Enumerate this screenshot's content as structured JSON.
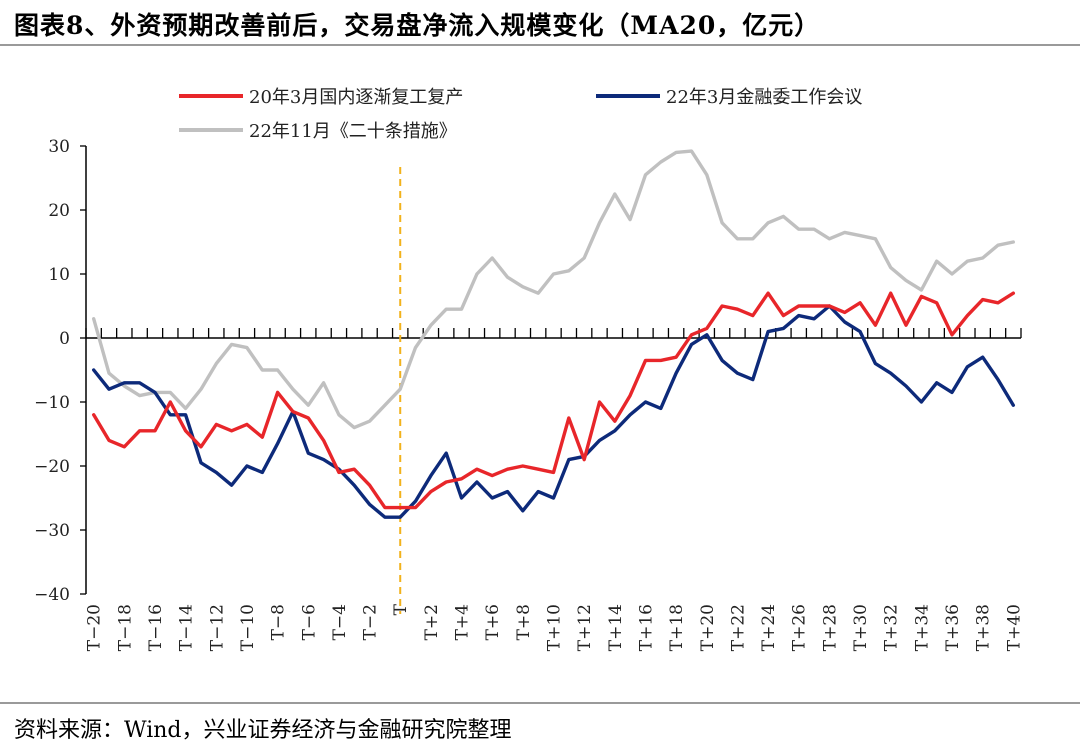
{
  "title": "图表8、外资预期改善前后，交易盘净流入规模变化（MA20，亿元）",
  "source": "资料来源：Wind，兴业证券经济与金融研究院整理",
  "chart_data": {
    "type": "line",
    "title": "图表8、外资预期改善前后，交易盘净流入规模变化（MA20，亿元）",
    "xlabel": "",
    "ylabel": "",
    "ylim": [
      -40,
      30
    ],
    "yticks": [
      -40,
      -30,
      -20,
      -10,
      0,
      10,
      20,
      30
    ],
    "grid": false,
    "legend_position": "top",
    "event_marker": "T",
    "x": [
      "T-20",
      "T-19",
      "T-18",
      "T-17",
      "T-16",
      "T-15",
      "T-14",
      "T-13",
      "T-12",
      "T-11",
      "T-10",
      "T-9",
      "T-8",
      "T-7",
      "T-6",
      "T-5",
      "T-4",
      "T-3",
      "T-2",
      "T-1",
      "T",
      "T+1",
      "T+2",
      "T+3",
      "T+4",
      "T+5",
      "T+6",
      "T+7",
      "T+8",
      "T+9",
      "T+10",
      "T+11",
      "T+12",
      "T+13",
      "T+14",
      "T+15",
      "T+16",
      "T+17",
      "T+18",
      "T+19",
      "T+20",
      "T+21",
      "T+22",
      "T+23",
      "T+24",
      "T+25",
      "T+26",
      "T+27",
      "T+28",
      "T+29",
      "T+30",
      "T+31",
      "T+32",
      "T+33",
      "T+34",
      "T+35",
      "T+36",
      "T+37",
      "T+38",
      "T+39",
      "T+40"
    ],
    "xtick_labels": [
      "T−20",
      "T−18",
      "T−16",
      "T−14",
      "T−12",
      "T−10",
      "T−8",
      "T−6",
      "T−4",
      "T−2",
      "T",
      "T+2",
      "T+4",
      "T+6",
      "T+8",
      "T+10",
      "T+12",
      "T+14",
      "T+16",
      "T+18",
      "T+20",
      "T+22",
      "T+24",
      "T+26",
      "T+28",
      "T+30",
      "T+32",
      "T+34",
      "T+36",
      "T+38",
      "T+40"
    ],
    "series": [
      {
        "name": "20年3月国内逐渐复工复产",
        "color": "#e8262a",
        "values": [
          -12,
          -16,
          -17,
          -14.5,
          -14.5,
          -10,
          -14.5,
          -17,
          -13.5,
          -14.5,
          -13.5,
          -15.5,
          -8.5,
          -11.5,
          -12.5,
          -16,
          -21,
          -20.5,
          -23,
          -26.5,
          -26.5,
          -26.5,
          -24,
          -22.5,
          -22,
          -20.5,
          -21.5,
          -20.5,
          -20,
          -20.5,
          -21,
          -12.5,
          -19,
          -10,
          -13,
          -9,
          -3.5,
          -3.5,
          -3,
          0.5,
          1.5,
          5,
          4.5,
          3.5,
          7,
          3.5,
          5,
          5,
          5,
          4,
          5.5,
          2,
          7,
          2,
          6.5,
          5.5,
          0.5,
          3.5,
          6,
          5.5,
          7
        ]
      },
      {
        "name": "22年3月金融委工作会议",
        "color": "#0d2a7a",
        "values": [
          -5,
          -8,
          -7,
          -7,
          -8.5,
          -12,
          -12,
          -19.5,
          -21,
          -23,
          -20,
          -21,
          -16.5,
          -11.5,
          -18,
          -19,
          -20.5,
          -23,
          -26,
          -28,
          -28,
          -25.5,
          -21.5,
          -18,
          -25,
          -22.5,
          -25,
          -24,
          -27,
          -24,
          -25,
          -19,
          -18.5,
          -16,
          -14.5,
          -12,
          -10,
          -11,
          -5.5,
          -1,
          0.5,
          -3.5,
          -5.5,
          -6.5,
          1,
          1.5,
          3.5,
          3,
          5,
          2.5,
          1,
          -4,
          -5.5,
          -7.5,
          -10,
          -7,
          -8.5,
          -4.5,
          -3,
          -6.5,
          -10.5
        ]
      },
      {
        "name": "22年11月《二十条措施》",
        "color": "#c0c0c0",
        "values": [
          3,
          -5.5,
          -7.5,
          -9,
          -8.5,
          -8.5,
          -11,
          -8,
          -4,
          -1,
          -1.5,
          -5,
          -5,
          -8,
          -10.5,
          -7,
          -12,
          -14,
          -13,
          -10.5,
          -8,
          -1.5,
          2,
          4.5,
          4.5,
          10,
          12.5,
          9.5,
          8,
          7,
          10,
          10.5,
          12.5,
          18,
          22.5,
          18.5,
          25.5,
          27.5,
          29,
          29.2,
          25.5,
          18,
          15.5,
          15.5,
          18,
          19,
          17,
          17,
          15.5,
          16.5,
          16,
          15.5,
          11,
          9,
          7.5,
          12,
          10,
          12,
          12.5,
          14.5,
          15
        ]
      }
    ]
  }
}
